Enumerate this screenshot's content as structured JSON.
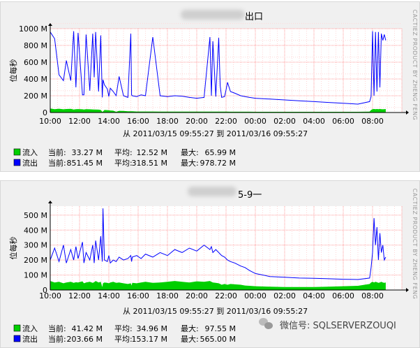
{
  "chart_data": [
    {
      "type": "area",
      "title": "出口",
      "side_label": "CACTIEZ PRODUCT BY ZHENG FENG",
      "ylabel": "位每秒",
      "ylim": [
        0,
        1000
      ],
      "yticks": [
        "0",
        "200 M",
        "400 M",
        "600 M",
        "800 M",
        "1000 M"
      ],
      "xticks": [
        "10:00",
        "12:00",
        "14:00",
        "16:00",
        "18:00",
        "20:00",
        "22:00",
        "00:00",
        "02:00",
        "04:00",
        "06:00",
        "08:00"
      ],
      "time_range": "从 2011/03/15 09:55:27 到 2011/03/16 09:55:27",
      "x_hours": [
        10.0,
        10.3,
        10.6,
        10.9,
        11.1,
        11.4,
        11.6,
        11.75,
        11.9,
        12.2,
        12.3,
        12.45,
        12.7,
        12.9,
        13.0,
        13.1,
        13.3,
        13.45,
        13.55,
        13.6,
        13.7,
        13.9,
        14.0,
        14.1,
        14.3,
        14.5,
        14.7,
        15.0,
        15.3,
        15.5,
        15.55,
        15.6,
        15.9,
        16.2,
        16.5,
        17.0,
        17.5,
        18.0,
        18.5,
        19.0,
        19.5,
        20.0,
        20.5,
        20.9,
        21.0,
        21.1,
        21.3,
        21.5,
        21.6,
        21.7,
        21.9,
        22.0,
        22.1,
        22.3,
        22.6,
        23.0,
        23.3,
        23.6,
        24.0,
        25.0,
        26.0,
        27.0,
        28.0,
        29.0,
        30.0,
        31.0,
        31.8,
        31.9,
        32.0,
        32.1,
        32.2,
        32.3,
        32.4,
        32.5,
        32.6,
        32.7,
        32.8,
        32.9
      ],
      "series": [
        {
          "name": "流入",
          "color": "#00cf00",
          "style": "area",
          "values": [
            48,
            40,
            45,
            38,
            42,
            44,
            36,
            40,
            41,
            38,
            35,
            40,
            38,
            37,
            36,
            35,
            34,
            30,
            8,
            12,
            30,
            28,
            26,
            24,
            22,
            8,
            20,
            18,
            15,
            14,
            14,
            14,
            12,
            12,
            12,
            12,
            11,
            11,
            11,
            11,
            10,
            10,
            10,
            10,
            10,
            10,
            10,
            10,
            10,
            10,
            10,
            10,
            10,
            9,
            9,
            9,
            9,
            9,
            8,
            8,
            8,
            8,
            8,
            8,
            8,
            8,
            10,
            30,
            40,
            42,
            40,
            42,
            40,
            42,
            40,
            38,
            40,
            42
          ]
        },
        {
          "name": "流出",
          "color": "#0000ff",
          "style": "line",
          "values": [
            960,
            880,
            450,
            380,
            620,
            380,
            970,
            300,
            950,
            210,
            210,
            930,
            260,
            940,
            420,
            960,
            250,
            920,
            180,
            390,
            330,
            280,
            190,
            290,
            250,
            200,
            430,
            200,
            180,
            940,
            210,
            200,
            190,
            210,
            200,
            900,
            200,
            190,
            200,
            195,
            180,
            170,
            180,
            900,
            200,
            850,
            190,
            890,
            320,
            180,
            190,
            270,
            360,
            250,
            230,
            200,
            190,
            180,
            170,
            160,
            150,
            140,
            130,
            120,
            110,
            100,
            130,
            190,
            970,
            200,
            960,
            250,
            960,
            300,
            940,
            860,
            930,
            860
          ]
        }
      ],
      "legend": [
        {
          "name": "流入",
          "color": "#00cf00",
          "current": "33.27 M",
          "average": "12.52 M",
          "max": "65.99 M"
        },
        {
          "name": "流出",
          "color": "#0000ff",
          "current": "851.45 M",
          "average": "318.51 M",
          "max": "978.72 M"
        }
      ],
      "labels": {
        "current": "当前:",
        "average": "平均:",
        "max": "最大:"
      }
    },
    {
      "type": "area",
      "title": "5-9一",
      "side_label": "CACTIEZ PRODUCT BY ZHENG FENG",
      "ylabel": "位每秒",
      "ylim": [
        0,
        560
      ],
      "yticks": [
        "0",
        "100 M",
        "200 M",
        "300 M",
        "400 M",
        "500 M"
      ],
      "xticks": [
        "10:00",
        "12:00",
        "14:00",
        "16:00",
        "18:00",
        "20:00",
        "22:00",
        "00:00",
        "02:00",
        "04:00",
        "06:00",
        "08:00"
      ],
      "time_range": "从 2011/03/15 09:55:27 到 2011/03/16 09:55:27",
      "x_hours": [
        10.0,
        10.3,
        10.6,
        10.9,
        11.1,
        11.4,
        11.6,
        11.75,
        11.9,
        12.2,
        12.3,
        12.45,
        12.7,
        12.9,
        13.0,
        13.1,
        13.3,
        13.45,
        13.55,
        13.6,
        13.7,
        13.9,
        14.0,
        14.1,
        14.3,
        14.5,
        14.7,
        15.0,
        15.3,
        15.5,
        15.55,
        15.6,
        15.9,
        16.2,
        16.5,
        17.0,
        17.5,
        18.0,
        18.5,
        19.0,
        19.5,
        20.0,
        20.5,
        20.9,
        21.0,
        21.1,
        21.3,
        21.5,
        21.6,
        21.7,
        21.9,
        22.0,
        22.1,
        22.3,
        22.6,
        23.0,
        23.3,
        23.6,
        24.0,
        25.0,
        26.0,
        27.0,
        28.0,
        29.0,
        30.0,
        31.0,
        31.8,
        31.9,
        32.0,
        32.1,
        32.2,
        32.3,
        32.4,
        32.5,
        32.6,
        32.7,
        32.8,
        32.9
      ],
      "series": [
        {
          "name": "流入",
          "color": "#00cf00",
          "style": "area",
          "values": [
            60,
            50,
            55,
            45,
            50,
            55,
            48,
            52,
            50,
            58,
            45,
            50,
            55,
            48,
            52,
            60,
            50,
            55,
            20,
            45,
            50,
            48,
            45,
            50,
            55,
            48,
            50,
            45,
            40,
            45,
            30,
            48,
            45,
            50,
            55,
            48,
            50,
            55,
            60,
            55,
            50,
            58,
            55,
            60,
            55,
            50,
            48,
            45,
            40,
            35,
            40,
            38,
            35,
            40,
            38,
            35,
            30,
            28,
            25,
            22,
            20,
            20,
            20,
            22,
            25,
            28,
            40,
            50,
            55,
            50,
            55,
            52,
            48,
            50,
            55,
            50,
            48,
            50
          ]
        },
        {
          "name": "流出",
          "color": "#0000ff",
          "style": "line",
          "values": [
            200,
            280,
            190,
            300,
            180,
            270,
            200,
            290,
            210,
            320,
            180,
            250,
            200,
            300,
            180,
            330,
            200,
            360,
            190,
            545,
            200,
            190,
            230,
            180,
            200,
            190,
            220,
            200,
            210,
            230,
            190,
            220,
            230,
            210,
            240,
            220,
            250,
            230,
            270,
            250,
            280,
            260,
            300,
            270,
            290,
            250,
            270,
            250,
            240,
            230,
            220,
            210,
            200,
            190,
            180,
            160,
            150,
            130,
            110,
            90,
            85,
            80,
            78,
            75,
            72,
            70,
            80,
            150,
            250,
            480,
            300,
            420,
            200,
            380,
            250,
            300,
            200,
            220
          ]
        }
      ],
      "legend": [
        {
          "name": "流入",
          "color": "#00cf00",
          "current": "41.42 M",
          "average": "34.96 M",
          "max": "97.55 M"
        },
        {
          "name": "流出",
          "color": "#0000ff",
          "current": "203.66 M",
          "average": "153.17 M",
          "max": "565.00 M"
        }
      ],
      "labels": {
        "current": "当前:",
        "average": "平均:",
        "max": "最大:"
      }
    }
  ],
  "watermark": {
    "text": "微信号: SQLSERVERZOUQI",
    "icon": "wechat-icon"
  }
}
